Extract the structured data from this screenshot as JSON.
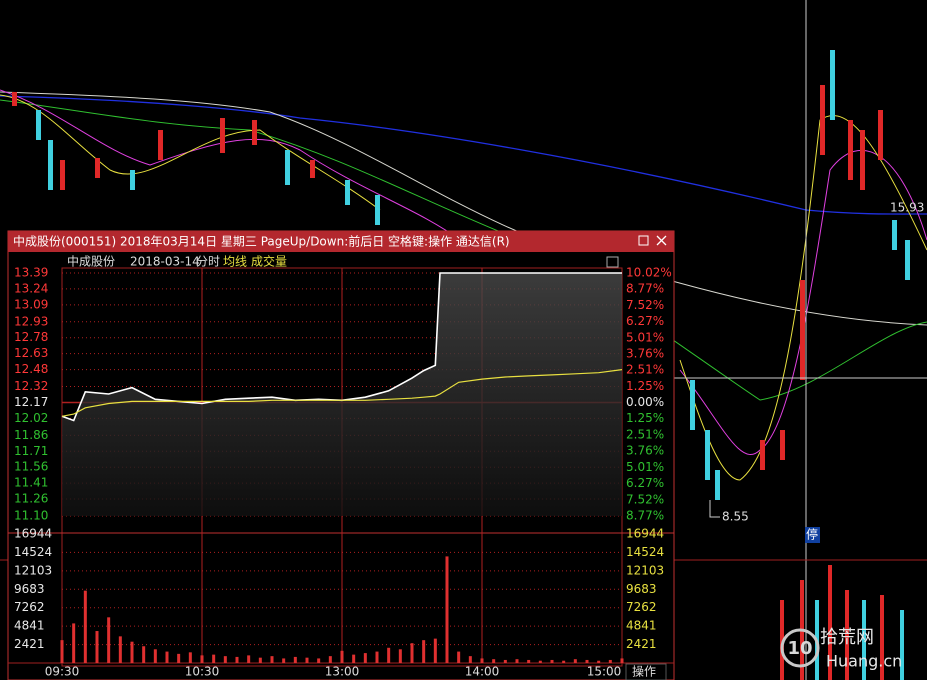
{
  "window_title": "中成股份(000151) 2018年03月14日 星期三 PageUp/Down:前后日 空格键:操作 通达信(R)",
  "header": {
    "date": "2018-03-14",
    "mode": "分时"
  },
  "background": {
    "high_label": "15.93",
    "low_label": "8.55",
    "halt_mark": "停"
  },
  "action_button": "操作",
  "watermark": {
    "logo": "10",
    "site": "拾荒网",
    "domain": "Huang.cn"
  },
  "chart_data": [
    {
      "type": "line",
      "x": [
        0,
        5,
        10,
        20,
        30,
        40,
        50,
        60,
        70,
        80,
        90,
        100,
        110,
        120,
        130,
        140,
        150,
        155,
        160,
        162,
        170,
        180,
        190,
        200,
        210,
        220,
        230,
        240
      ],
      "xlim": [
        0,
        240
      ],
      "xticks": [
        {
          "value": 0,
          "label": "09:30"
        },
        {
          "value": 60,
          "label": "10:30"
        },
        {
          "value": 120,
          "label": "13:00"
        },
        {
          "value": 180,
          "label": "14:00"
        },
        {
          "value": 240,
          "label": "15:00"
        }
      ],
      "series": [
        {
          "name": "中成股份",
          "color": "#ffffff",
          "values": [
            12.04,
            12.0,
            12.27,
            12.25,
            12.31,
            12.2,
            12.18,
            12.16,
            12.2,
            12.21,
            12.22,
            12.19,
            12.2,
            12.19,
            12.22,
            12.28,
            12.4,
            12.47,
            12.52,
            13.39,
            13.39,
            13.39,
            13.39,
            13.39,
            13.39,
            13.39,
            13.39,
            13.39
          ]
        },
        {
          "name": "均线",
          "color": "#e8e040",
          "values": [
            12.04,
            12.06,
            12.12,
            12.16,
            12.18,
            12.18,
            12.18,
            12.18,
            12.18,
            12.18,
            12.19,
            12.19,
            12.19,
            12.19,
            12.19,
            12.2,
            12.21,
            12.22,
            12.23,
            12.25,
            12.36,
            12.39,
            12.41,
            12.42,
            12.43,
            12.44,
            12.45,
            12.48
          ]
        }
      ],
      "ylim": [
        11.1,
        13.39
      ],
      "yticks": [
        13.39,
        13.24,
        13.09,
        12.93,
        12.78,
        12.63,
        12.48,
        12.32,
        12.17,
        12.02,
        11.86,
        11.71,
        11.56,
        11.41,
        11.26,
        {
          "value": 11.1,
          "label": "11.10"
        }
      ],
      "y2lim": [
        -8.77,
        10.02
      ],
      "y2ticks": [
        {
          "value": 10.02,
          "label": "10.02%"
        },
        {
          "value": 8.77,
          "label": "8.77%"
        },
        {
          "value": 7.52,
          "label": "7.52%"
        },
        {
          "value": 6.27,
          "label": "6.27%"
        },
        {
          "value": 5.01,
          "label": "5.01%"
        },
        {
          "value": 3.76,
          "label": "3.76%"
        },
        {
          "value": 2.51,
          "label": "2.51%"
        },
        {
          "value": 1.25,
          "label": "1.25%"
        },
        {
          "value": 0,
          "label": "0.00%"
        },
        {
          "value": -1.25,
          "label": "1.25%"
        },
        {
          "value": -2.51,
          "label": "2.51%"
        },
        {
          "value": -3.76,
          "label": "3.76%"
        },
        {
          "value": -5.01,
          "label": "5.01%"
        },
        {
          "value": -6.27,
          "label": "6.27%"
        },
        {
          "value": -7.52,
          "label": "7.52%"
        },
        {
          "value": -8.77,
          "label": "8.77%"
        }
      ],
      "grid": true
    },
    {
      "type": "bar",
      "x": [
        0,
        5,
        10,
        15,
        20,
        25,
        30,
        35,
        40,
        45,
        50,
        55,
        60,
        65,
        70,
        75,
        80,
        85,
        90,
        95,
        100,
        105,
        110,
        115,
        120,
        125,
        130,
        135,
        140,
        145,
        150,
        155,
        160,
        165,
        170,
        175,
        180,
        185,
        190,
        195,
        200,
        205,
        210,
        215,
        220,
        225,
        230,
        235,
        240
      ],
      "xlim": [
        0,
        240
      ],
      "series": [
        {
          "name": "成交量",
          "color": "#e03030",
          "values": [
            3000,
            5200,
            9500,
            4200,
            6000,
            3500,
            2800,
            2200,
            1800,
            1500,
            1200,
            1400,
            1000,
            1100,
            900,
            800,
            1000,
            700,
            900,
            600,
            800,
            700,
            600,
            900,
            1600,
            1100,
            1300,
            1500,
            2000,
            1800,
            2600,
            3000,
            3200,
            14000,
            1500,
            900,
            600,
            500,
            400,
            500,
            400,
            300,
            400,
            300,
            500,
            400,
            300,
            400,
            600
          ]
        }
      ],
      "ylim": [
        0,
        16944
      ],
      "yticks": [
        16944,
        14524,
        12103,
        9683,
        7262,
        4841,
        2421
      ],
      "grid": true
    }
  ]
}
